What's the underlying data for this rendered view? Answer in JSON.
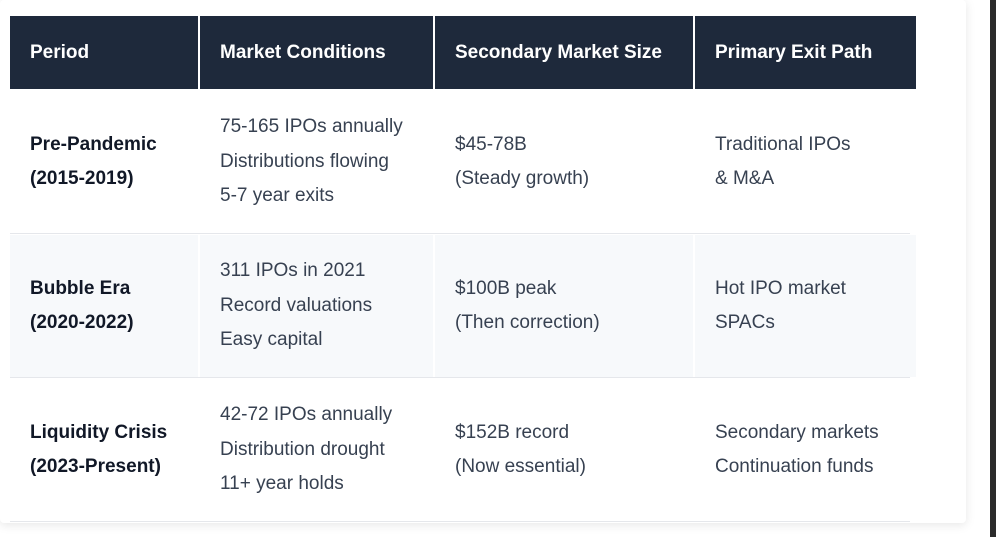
{
  "table": {
    "headers": [
      "Period",
      "Market Conditions",
      "Secondary Market Size",
      "Primary Exit Path"
    ],
    "rows": [
      {
        "period": [
          "Pre-Pandemic",
          "(2015-2019)"
        ],
        "conditions": [
          "75-165 IPOs annually",
          "Distributions flowing",
          "5-7 year exits"
        ],
        "size": [
          "$45-78B",
          "(Steady growth)"
        ],
        "exit": [
          "Traditional IPOs",
          "& M&A"
        ]
      },
      {
        "period": [
          "Bubble Era",
          "(2020-2022)"
        ],
        "conditions": [
          "311 IPOs in 2021",
          "Record valuations",
          "Easy capital"
        ],
        "size": [
          "$100B peak",
          "(Then correction)"
        ],
        "exit": [
          "Hot IPO market",
          "SPACs"
        ]
      },
      {
        "period": [
          "Liquidity Crisis",
          "(2023-Present)"
        ],
        "conditions": [
          "42-72 IPOs annually",
          "Distribution drought",
          "11+ year holds"
        ],
        "size": [
          "$152B record",
          "(Now essential)"
        ],
        "exit": [
          "Secondary markets",
          "Continuation funds"
        ]
      }
    ]
  },
  "colors": {
    "header_bg": "#1e293b",
    "header_text": "#ffffff",
    "alt_row_bg": "#f7f9fb",
    "body_text": "#374151"
  }
}
